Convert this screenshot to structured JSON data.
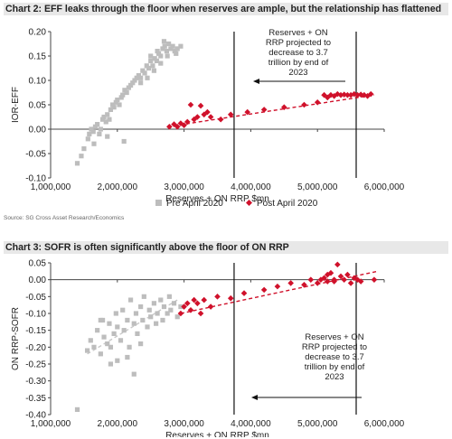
{
  "source": "Source: SG Cross Asset Research/Economics",
  "chart_data": [
    {
      "type": "scatter",
      "title": "Chart 2: EFF leaks through the floor when reserves are ample, but the relationship has flattened",
      "xlabel": "Reserves + ON RRP $mn",
      "ylabel": "IOR-EFF",
      "xlim": [
        1000000,
        6000000
      ],
      "ylim": [
        -0.1,
        0.2
      ],
      "x_ticks": [
        1000000,
        2000000,
        3000000,
        4000000,
        5000000,
        6000000
      ],
      "x_tick_labels": [
        "1,000,000",
        "2,000,000",
        "3,000,000",
        "4,000,000",
        "5,000,000",
        "6,000,000"
      ],
      "y_ticks": [
        -0.1,
        -0.05,
        0.0,
        0.05,
        0.1,
        0.15,
        0.2
      ],
      "y_tick_labels": [
        "-0.10",
        "-0.05",
        "0.00",
        "0.05",
        "0.10",
        "0.15",
        "0.20"
      ],
      "legend": "bottom",
      "grid": false,
      "vlines": [
        3750000,
        5580000
      ],
      "annotation": "Reserves + ON RRP projected to decrease to 3.7 trillion by end of 2023",
      "annotation_lines": [
        "Reserves + ON",
        "RRP projected to",
        "decrease to 3.7",
        "trillion by end of",
        "2023"
      ],
      "colors": {
        "pre": "#bdbdbd",
        "post": "#d0112b"
      },
      "series": [
        {
          "name": "Pre April 2020",
          "marker": "square",
          "points": [
            [
              1400000,
              -0.07
            ],
            [
              1460000,
              -0.055
            ],
            [
              1500000,
              -0.04
            ],
            [
              1560000,
              -0.02
            ],
            [
              1580000,
              -0.01
            ],
            [
              1610000,
              0.0
            ],
            [
              1640000,
              -0.005
            ],
            [
              1670000,
              0.005
            ],
            [
              1700000,
              0.01
            ],
            [
              1730000,
              -0.01
            ],
            [
              1750000,
              0.0
            ],
            [
              1780000,
              0.02
            ],
            [
              1800000,
              0.025
            ],
            [
              1830000,
              0.015
            ],
            [
              1850000,
              0.03
            ],
            [
              1880000,
              0.02
            ],
            [
              1900000,
              0.04
            ],
            [
              1930000,
              0.05
            ],
            [
              1950000,
              0.045
            ],
            [
              1980000,
              0.055
            ],
            [
              2000000,
              0.06
            ],
            [
              2030000,
              0.05
            ],
            [
              2060000,
              0.065
            ],
            [
              2080000,
              0.07
            ],
            [
              2110000,
              0.08
            ],
            [
              2140000,
              0.075
            ],
            [
              2170000,
              0.085
            ],
            [
              2200000,
              0.09
            ],
            [
              2230000,
              0.095
            ],
            [
              2260000,
              0.1
            ],
            [
              2290000,
              0.105
            ],
            [
              2320000,
              0.11
            ],
            [
              2350000,
              0.105
            ],
            [
              2380000,
              0.12
            ],
            [
              2410000,
              0.115
            ],
            [
              2440000,
              0.13
            ],
            [
              2470000,
              0.125
            ],
            [
              2500000,
              0.14
            ],
            [
              2530000,
              0.13
            ],
            [
              2560000,
              0.145
            ],
            [
              2590000,
              0.14
            ],
            [
              2620000,
              0.155
            ],
            [
              2650000,
              0.15
            ],
            [
              2680000,
              0.165
            ],
            [
              2710000,
              0.17
            ],
            [
              2740000,
              0.16
            ],
            [
              2770000,
              0.175
            ],
            [
              2800000,
              0.165
            ],
            [
              2830000,
              0.17
            ],
            [
              2860000,
              0.16
            ],
            [
              2900000,
              0.165
            ],
            [
              2950000,
              0.17
            ],
            [
              2700000,
              0.18
            ],
            [
              2600000,
              0.16
            ],
            [
              2500000,
              0.15
            ],
            [
              2550000,
              0.12
            ],
            [
              2450000,
              0.105
            ],
            [
              2350000,
              0.095
            ],
            [
              2100000,
              -0.025
            ],
            [
              1850000,
              -0.015
            ],
            [
              1650000,
              -0.03
            ],
            [
              2650000,
              0.135
            ],
            [
              2750000,
              0.15
            ],
            [
              2880000,
              0.155
            ]
          ]
        },
        {
          "name": "Post April 2020",
          "marker": "diamond",
          "points": [
            [
              2780000,
              0.005
            ],
            [
              2850000,
              0.01
            ],
            [
              2900000,
              0.005
            ],
            [
              2950000,
              0.012
            ],
            [
              3000000,
              0.008
            ],
            [
              3050000,
              0.015
            ],
            [
              3100000,
              0.05
            ],
            [
              3150000,
              0.02
            ],
            [
              3200000,
              0.025
            ],
            [
              3250000,
              0.048
            ],
            [
              3300000,
              0.03
            ],
            [
              3350000,
              0.035
            ],
            [
              3400000,
              0.025
            ],
            [
              3550000,
              0.02
            ],
            [
              3700000,
              0.03
            ],
            [
              3950000,
              0.035
            ],
            [
              4200000,
              0.04
            ],
            [
              4500000,
              0.045
            ],
            [
              4800000,
              0.05
            ],
            [
              5000000,
              0.055
            ],
            [
              5100000,
              0.07
            ],
            [
              5150000,
              0.065
            ],
            [
              5200000,
              0.07
            ],
            [
              5250000,
              0.068
            ],
            [
              5300000,
              0.072
            ],
            [
              5350000,
              0.07
            ],
            [
              5400000,
              0.071
            ],
            [
              5450000,
              0.07
            ],
            [
              5500000,
              0.07
            ],
            [
              5550000,
              0.072
            ],
            [
              5600000,
              0.07
            ],
            [
              5650000,
              0.071
            ],
            [
              5700000,
              0.07
            ],
            [
              5750000,
              0.068
            ],
            [
              5800000,
              0.072
            ]
          ]
        }
      ],
      "trendline": {
        "from": [
          2750000,
          0.005
        ],
        "to": [
          5850000,
          0.07
        ]
      }
    },
    {
      "type": "scatter",
      "title": "Chart 3: SOFR is often significantly above the floor of ON RRP",
      "xlabel": "Reserves + ON RRP $mn",
      "ylabel": "ON RRP-SOFR",
      "xlim": [
        1000000,
        6000000
      ],
      "ylim": [
        -0.4,
        0.05
      ],
      "x_ticks": [
        1000000,
        2000000,
        3000000,
        4000000,
        5000000,
        6000000
      ],
      "x_tick_labels": [
        "1,000,000",
        "2,000,000",
        "3,000,000",
        "4,000,000",
        "5,000,000",
        "6,000,000"
      ],
      "y_ticks": [
        -0.4,
        -0.35,
        -0.3,
        -0.25,
        -0.2,
        -0.15,
        -0.1,
        -0.05,
        0.0,
        0.05
      ],
      "y_tick_labels": [
        "-0.40",
        "-0.35",
        "-0.30",
        "-0.25",
        "-0.20",
        "-0.15",
        "-0.10",
        "-0.05",
        "0.00",
        "0.05"
      ],
      "grid": false,
      "vlines": [
        3750000,
        5580000
      ],
      "annotation": "Reserves + ON RRP projected to decrease to 3.7 trillion by end of 2023",
      "annotation_lines": [
        "Reserves + ON",
        "RRP projected to",
        "decrease to 3.7",
        "trillion by end of",
        "2023"
      ],
      "colors": {
        "pre": "#bdbdbd",
        "post": "#d0112b"
      },
      "series": [
        {
          "name": "Pre April 2020",
          "marker": "square",
          "points": [
            [
              1400000,
              -0.385
            ],
            [
              1550000,
              -0.21
            ],
            [
              1600000,
              -0.18
            ],
            [
              1650000,
              -0.2
            ],
            [
              1700000,
              -0.15
            ],
            [
              1750000,
              -0.22
            ],
            [
              1780000,
              -0.12
            ],
            [
              1800000,
              -0.17
            ],
            [
              1850000,
              -0.19
            ],
            [
              1880000,
              -0.13
            ],
            [
              1900000,
              -0.2
            ],
            [
              1950000,
              -0.16
            ],
            [
              1980000,
              -0.1
            ],
            [
              2000000,
              -0.14
            ],
            [
              2050000,
              -0.18
            ],
            [
              2080000,
              -0.09
            ],
            [
              2100000,
              -0.15
            ],
            [
              2150000,
              -0.12
            ],
            [
              2180000,
              -0.2
            ],
            [
              2200000,
              -0.06
            ],
            [
              2250000,
              -0.13
            ],
            [
              2280000,
              -0.1
            ],
            [
              2300000,
              -0.16
            ],
            [
              2350000,
              -0.08
            ],
            [
              2380000,
              -0.12
            ],
            [
              2400000,
              -0.05
            ],
            [
              2450000,
              -0.14
            ],
            [
              2480000,
              -0.09
            ],
            [
              2500000,
              -0.11
            ],
            [
              2550000,
              -0.07
            ],
            [
              2580000,
              -0.13
            ],
            [
              2600000,
              -0.1
            ],
            [
              2650000,
              -0.06
            ],
            [
              2680000,
              -0.12
            ],
            [
              2700000,
              -0.08
            ],
            [
              2750000,
              -0.1
            ],
            [
              2780000,
              -0.05
            ],
            [
              2800000,
              -0.09
            ],
            [
              2850000,
              -0.07
            ],
            [
              2900000,
              -0.11
            ],
            [
              2950000,
              -0.08
            ],
            [
              2250000,
              -0.28
            ],
            [
              2000000,
              -0.24
            ],
            [
              1750000,
              -0.12
            ],
            [
              1900000,
              -0.25
            ],
            [
              2150000,
              -0.23
            ],
            [
              2350000,
              -0.19
            ]
          ]
        },
        {
          "name": "Post April 2020",
          "marker": "diamond",
          "points": [
            [
              2950000,
              -0.1
            ],
            [
              3000000,
              -0.08
            ],
            [
              3050000,
              -0.07
            ],
            [
              3100000,
              -0.09
            ],
            [
              3200000,
              -0.07
            ],
            [
              3300000,
              -0.06
            ],
            [
              3400000,
              -0.08
            ],
            [
              3500000,
              -0.05
            ],
            [
              3700000,
              -0.055
            ],
            [
              3900000,
              -0.04
            ],
            [
              4200000,
              -0.03
            ],
            [
              4400000,
              -0.02
            ],
            [
              4600000,
              -0.01
            ],
            [
              4800000,
              -0.015
            ],
            [
              4900000,
              0.0
            ],
            [
              5000000,
              -0.01
            ],
            [
              5050000,
              0.0
            ],
            [
              5100000,
              0.005
            ],
            [
              5150000,
              -0.005
            ],
            [
              5200000,
              0.02
            ],
            [
              5250000,
              0.0
            ],
            [
              5300000,
              0.045
            ],
            [
              5350000,
              0.01
            ],
            [
              5400000,
              0.0
            ],
            [
              5450000,
              0.015
            ],
            [
              5500000,
              -0.01
            ],
            [
              5550000,
              0.005
            ],
            [
              5600000,
              0.0
            ],
            [
              5650000,
              -0.005
            ],
            [
              5850000,
              0.0
            ],
            [
              5250000,
              -0.005
            ],
            [
              5150000,
              0.015
            ],
            [
              3250000,
              -0.1
            ],
            [
              3150000,
              -0.06
            ]
          ]
        }
      ],
      "trendlines": [
        {
          "series": "Post April 2020",
          "from": [
            2950000,
            -0.1
          ],
          "to": [
            5900000,
            0.025
          ]
        },
        {
          "series": "Pre April 2020",
          "from": [
            1550000,
            -0.22
          ],
          "to": [
            2900000,
            -0.06
          ]
        }
      ]
    }
  ]
}
